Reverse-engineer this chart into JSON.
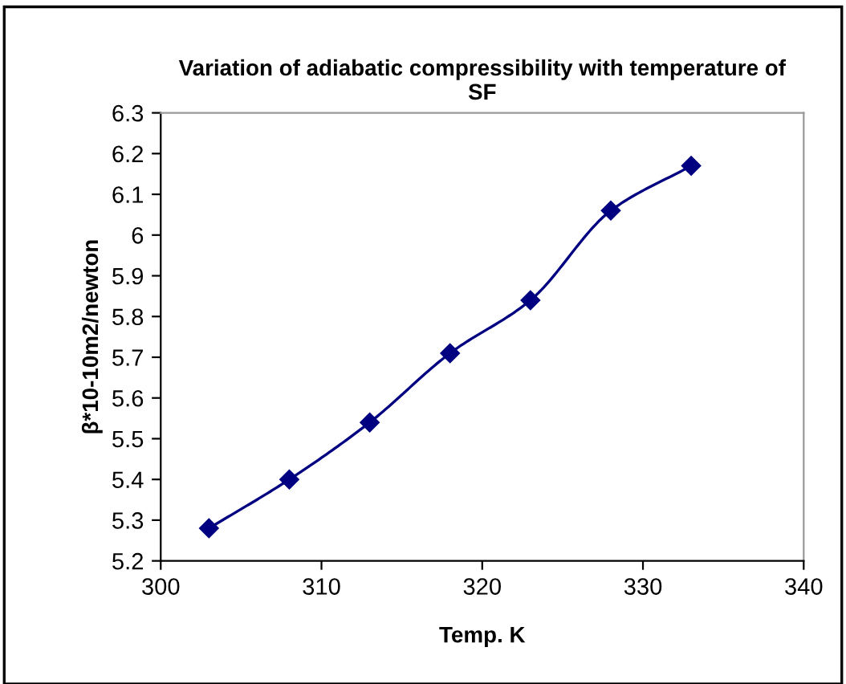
{
  "chart_data": {
    "type": "line",
    "title": "Variation of adiabatic compressibility with temperature of SF",
    "xlabel": "Temp. K",
    "ylabel": "β*10-10m2/newton",
    "x": [
      303,
      308,
      313,
      318,
      323,
      328,
      333
    ],
    "series": [
      {
        "color": "#000080",
        "values": [
          5.28,
          5.4,
          5.54,
          5.71,
          5.84,
          6.06,
          6.17
        ]
      }
    ],
    "xlim": [
      300,
      340
    ],
    "xticks": [
      300,
      310,
      320,
      330,
      340
    ],
    "ylim": [
      5.2,
      6.3
    ],
    "yticks": [
      5.2,
      5.3,
      5.4,
      5.5,
      5.6,
      5.7,
      5.8,
      5.9,
      6,
      6.1,
      6.2,
      6.3
    ],
    "grid": false,
    "marker": "diamond",
    "line_style": "solid"
  }
}
